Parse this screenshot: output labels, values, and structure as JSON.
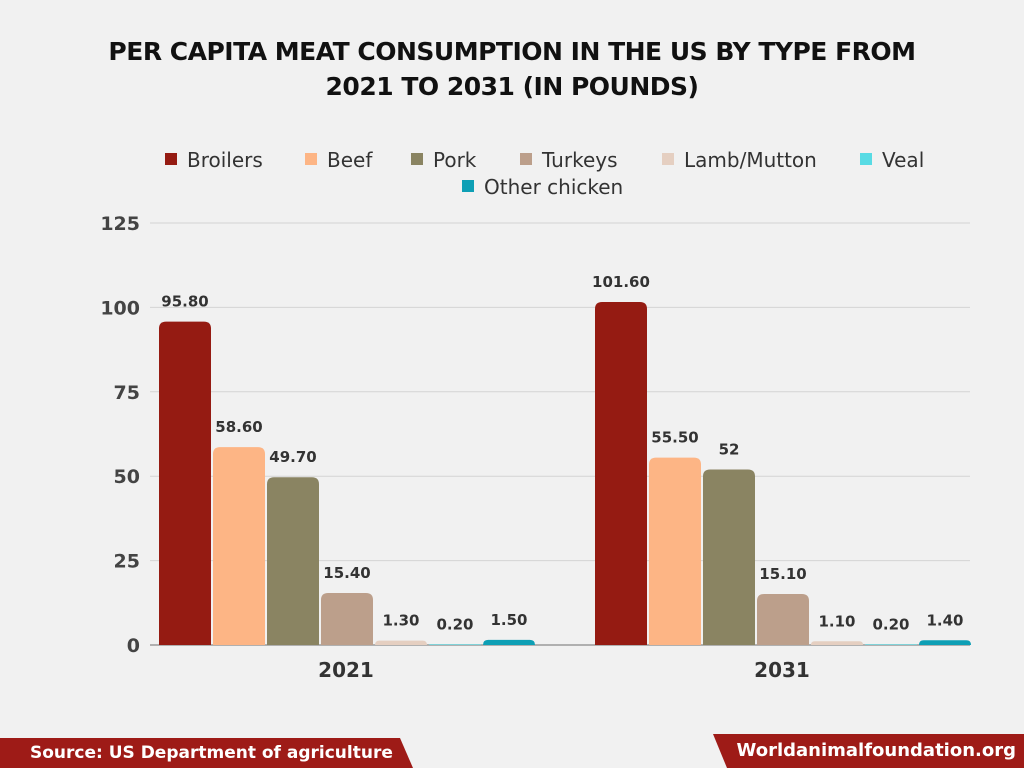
{
  "chart_data": {
    "type": "bar",
    "title": "PER CAPITA MEAT CONSUMPTION IN THE US BY TYPE FROM 2021 TO 2031 (IN POUNDS)",
    "title_lines": [
      "PER CAPITA MEAT CONSUMPTION IN THE US BY TYPE FROM",
      "2021 TO 2031 (IN POUNDS)"
    ],
    "categories": [
      "2021",
      "2031"
    ],
    "series": [
      {
        "name": "Broilers",
        "color": "#951b12",
        "values": [
          95.8,
          101.6
        ],
        "labels": [
          "95.80",
          "101.60"
        ]
      },
      {
        "name": "Beef",
        "color": "#fdb585",
        "values": [
          58.6,
          55.5
        ],
        "labels": [
          "58.60",
          "55.50"
        ]
      },
      {
        "name": "Pork",
        "color": "#8a8462",
        "values": [
          49.7,
          52
        ],
        "labels": [
          "49.70",
          "52"
        ]
      },
      {
        "name": "Turkeys",
        "color": "#bc9f8b",
        "values": [
          15.4,
          15.1
        ],
        "labels": [
          "15.40",
          "15.10"
        ]
      },
      {
        "name": "Lamb/Mutton",
        "color": "#e5cfc1",
        "values": [
          1.3,
          1.1
        ],
        "labels": [
          "1.30",
          "1.10"
        ]
      },
      {
        "name": "Veal",
        "color": "#58dbe4",
        "values": [
          0.2,
          0.2
        ],
        "labels": [
          "0.20",
          "0.20"
        ]
      },
      {
        "name": "Other chicken",
        "color": "#0e9fb5",
        "values": [
          1.5,
          1.4
        ],
        "labels": [
          "1.50",
          "1.40"
        ]
      }
    ],
    "ylim": [
      0,
      125
    ],
    "yticks": [
      0,
      25,
      50,
      75,
      100,
      125
    ],
    "grid": true,
    "legend_position": "top"
  },
  "footer": {
    "source": "Source: US Department of agriculture",
    "site": "Worldanimalfoundation.org"
  }
}
